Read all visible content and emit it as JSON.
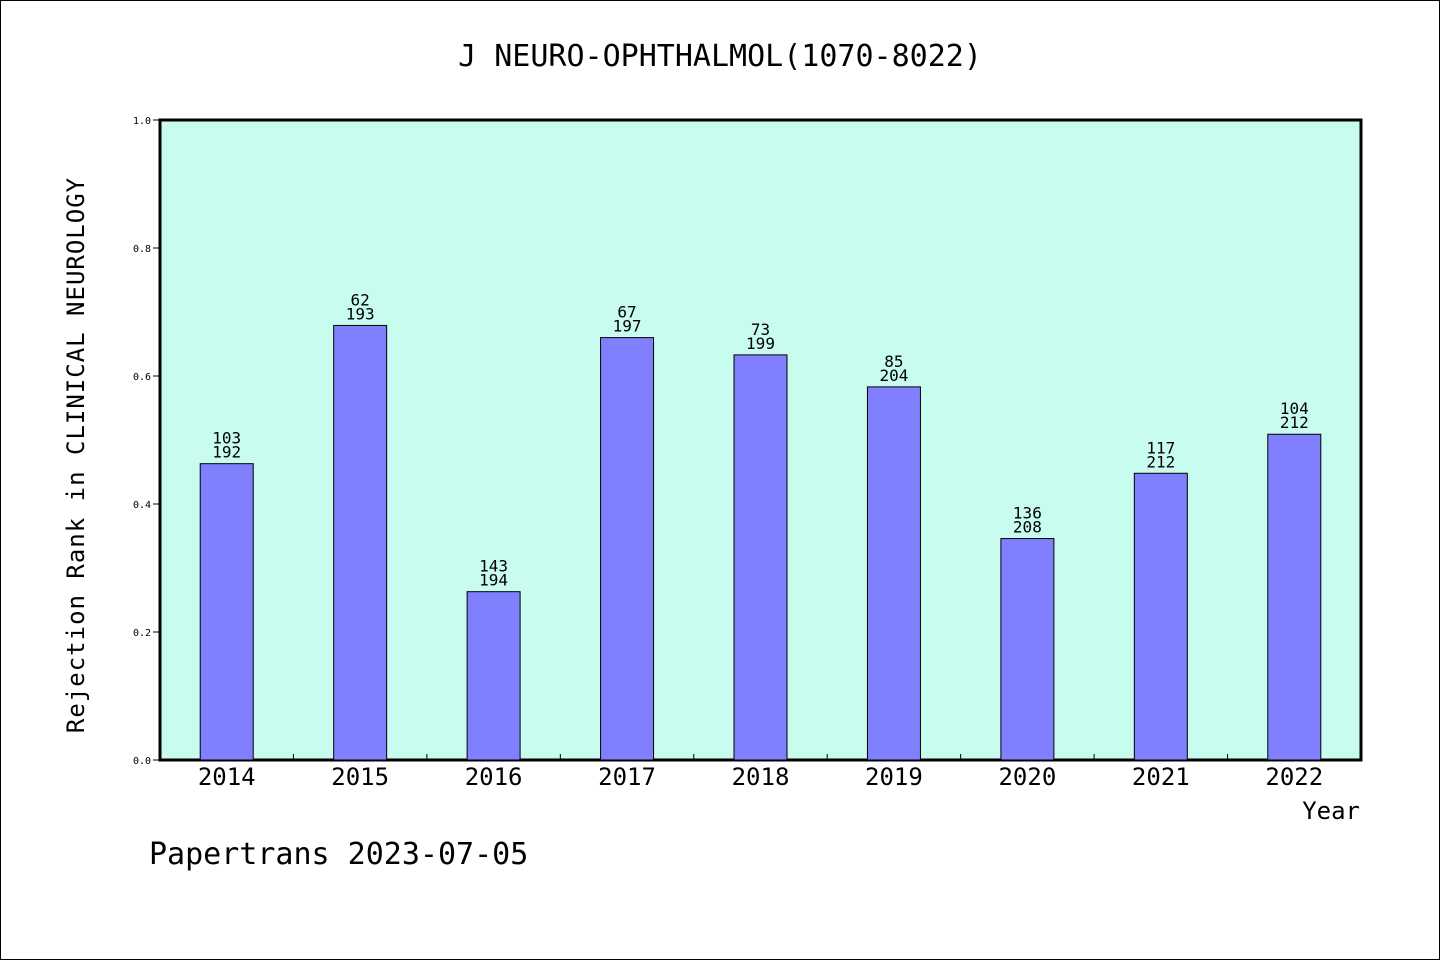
{
  "chart_data": {
    "type": "bar",
    "title": "J NEURO-OPHTHALMOL(1070-8022)",
    "ylabel": "Rejection Rank in CLINICAL NEUROLOGY",
    "xlabel": "Year",
    "ylim": [
      0,
      1.0
    ],
    "yticks": [
      "0.0",
      "0.2",
      "0.4",
      "0.6",
      "0.8",
      "1.0"
    ],
    "categories": [
      "2014",
      "2015",
      "2016",
      "2017",
      "2018",
      "2019",
      "2020",
      "2021",
      "2022"
    ],
    "values": [
      0.463,
      0.679,
      0.263,
      0.66,
      0.633,
      0.583,
      0.346,
      0.448,
      0.509
    ],
    "labels_top": [
      "103",
      "62",
      "143",
      "67",
      "73",
      "85",
      "136",
      "117",
      "104"
    ],
    "labels_bottom": [
      "192",
      "193",
      "194",
      "197",
      "199",
      "204",
      "208",
      "212",
      "212"
    ],
    "grid": false,
    "colors": {
      "plot_bg": "#c8fcee",
      "bar": "#8080ff",
      "bar_stroke": "#000000"
    }
  },
  "footer": "Papertrans 2023-07-05"
}
